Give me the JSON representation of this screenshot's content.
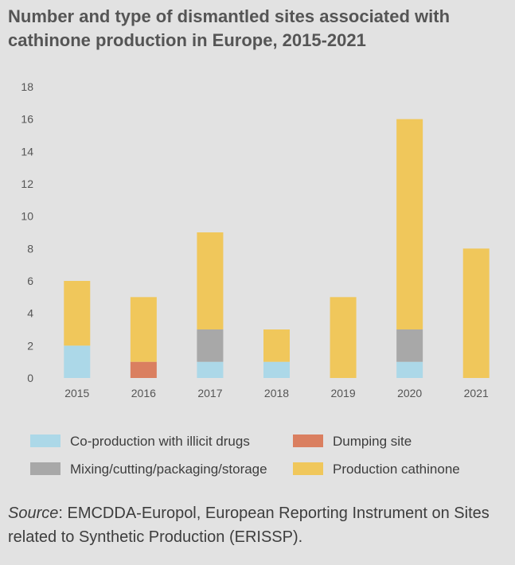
{
  "title": "Number and type of dismantled sites associated with cathinone production in Europe, 2015-2021",
  "source_label": "Source",
  "source_text": ": EMCDDA-Europol, European Reporting Instrument on Sites related to Synthetic Production (ERISSP).",
  "chart_data": {
    "type": "bar",
    "stacked": true,
    "categories": [
      "2015",
      "2016",
      "2017",
      "2018",
      "2019",
      "2020",
      "2021"
    ],
    "series": [
      {
        "name": "Co-production with illicit drugs",
        "color": "#acd8e8",
        "values": [
          2,
          0,
          1,
          1,
          0,
          1,
          0
        ]
      },
      {
        "name": "Dumping site",
        "color": "#da7f60",
        "values": [
          0,
          1,
          0,
          0,
          0,
          0,
          0
        ]
      },
      {
        "name": "Mixing/cutting/packaging/storage",
        "color": "#a8a8a8",
        "values": [
          0,
          0,
          2,
          0,
          0,
          2,
          0
        ]
      },
      {
        "name": "Production cathinone",
        "color": "#f0c75b",
        "values": [
          4,
          4,
          6,
          2,
          5,
          13,
          8
        ]
      }
    ],
    "yticks": [
      "0",
      "2",
      "4",
      "6",
      "8",
      "10",
      "12",
      "14",
      "16",
      "18"
    ],
    "ylim": [
      0,
      18
    ],
    "xlabel": "",
    "ylabel": "",
    "grid": false,
    "legend": {
      "position": "bottom",
      "order": [
        "Co-production with illicit drugs",
        "Dumping site",
        "Mixing/cutting/packaging/storage",
        "Production cathinone"
      ]
    }
  }
}
